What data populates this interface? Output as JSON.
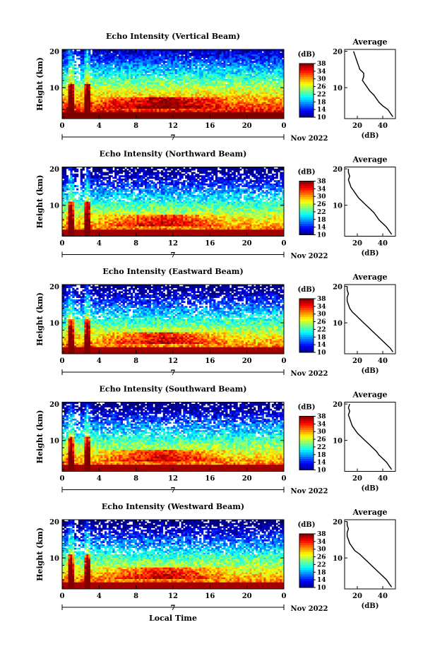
{
  "figure": {
    "xlabel": "Local Time",
    "month_label": "Nov 2022",
    "day_marker": "7"
  },
  "chart_data": [
    {
      "type": "heatmap",
      "title": "Echo Intensity (Vertical Beam)",
      "ylabel": "Height (km)",
      "x_ticks": [
        "0",
        "4",
        "8",
        "12",
        "16",
        "20",
        "0"
      ],
      "xlim": [
        0,
        24
      ],
      "y_ticks": [
        "10",
        "20"
      ],
      "ylim": [
        1.5,
        20.5
      ],
      "colorbar": {
        "unit": "(dB)",
        "ticks": [
          "10",
          "14",
          "18",
          "22",
          "26",
          "30",
          "34",
          "38"
        ],
        "range": [
          10,
          38
        ]
      },
      "profile": {
        "title": "Average",
        "xlabel": "(dB)",
        "x_ticks": [
          "20",
          "40"
        ],
        "xlim": [
          10,
          50
        ],
        "y_ticks": [
          "10",
          "20"
        ],
        "heights": [
          2,
          3,
          4,
          5,
          6,
          7,
          8,
          9,
          10,
          11,
          12,
          13,
          14,
          15,
          16,
          17,
          18,
          19,
          20
        ],
        "values": [
          48,
          46,
          44,
          40,
          37,
          35,
          33,
          30,
          28,
          26,
          24,
          25,
          25,
          22,
          21,
          20,
          19,
          18,
          17
        ]
      }
    },
    {
      "type": "heatmap",
      "title": "Echo Intensity (Northward Beam)",
      "ylabel": "Height (km)",
      "x_ticks": [
        "0",
        "4",
        "8",
        "12",
        "16",
        "20",
        "0"
      ],
      "xlim": [
        0,
        24
      ],
      "y_ticks": [
        "10",
        "20"
      ],
      "ylim": [
        1.5,
        20.5
      ],
      "colorbar": {
        "unit": "(dB)",
        "ticks": [
          "10",
          "14",
          "18",
          "22",
          "26",
          "30",
          "34",
          "38"
        ],
        "range": [
          10,
          38
        ]
      },
      "profile": {
        "title": "Average",
        "xlabel": "(dB)",
        "x_ticks": [
          "20",
          "40"
        ],
        "xlim": [
          10,
          50
        ],
        "y_ticks": [
          "10",
          "20"
        ],
        "heights": [
          2,
          3,
          4,
          5,
          6,
          7,
          8,
          9,
          10,
          11,
          12,
          13,
          14,
          15,
          16,
          17,
          18,
          19,
          20
        ],
        "values": [
          47,
          45,
          43,
          40,
          37,
          35,
          33,
          30,
          27,
          24,
          21,
          19,
          17,
          15,
          14,
          13,
          14,
          13,
          13
        ]
      }
    },
    {
      "type": "heatmap",
      "title": "Echo Intensity (Eastward Beam)",
      "ylabel": "Height (km)",
      "x_ticks": [
        "0",
        "4",
        "8",
        "12",
        "16",
        "20",
        "0"
      ],
      "xlim": [
        0,
        24
      ],
      "y_ticks": [
        "10",
        "20"
      ],
      "ylim": [
        1.5,
        20.5
      ],
      "colorbar": {
        "unit": "(dB)",
        "ticks": [
          "10",
          "14",
          "18",
          "22",
          "26",
          "30",
          "34",
          "38"
        ],
        "range": [
          10,
          38
        ]
      },
      "profile": {
        "title": "Average",
        "xlabel": "(dB)",
        "x_ticks": [
          "20",
          "40"
        ],
        "xlim": [
          10,
          50
        ],
        "y_ticks": [
          "10",
          "20"
        ],
        "heights": [
          2,
          3,
          4,
          5,
          6,
          7,
          8,
          9,
          10,
          11,
          12,
          13,
          14,
          15,
          16,
          17,
          18,
          19,
          20
        ],
        "values": [
          48,
          46,
          43,
          40,
          37,
          34,
          31,
          28,
          25,
          22,
          19,
          16,
          14,
          13,
          12,
          12,
          13,
          12,
          12
        ]
      }
    },
    {
      "type": "heatmap",
      "title": "Echo Intensity (Southward Beam)",
      "ylabel": "Height (km)",
      "x_ticks": [
        "0",
        "4",
        "8",
        "12",
        "16",
        "20",
        "0"
      ],
      "xlim": [
        0,
        24
      ],
      "y_ticks": [
        "10",
        "20"
      ],
      "ylim": [
        1.5,
        20.5
      ],
      "colorbar": {
        "unit": "(dB)",
        "ticks": [
          "10",
          "14",
          "18",
          "22",
          "26",
          "30",
          "34",
          "38"
        ],
        "range": [
          10,
          38
        ]
      },
      "profile": {
        "title": "Average",
        "xlabel": "(dB)",
        "x_ticks": [
          "20",
          "40"
        ],
        "xlim": [
          10,
          50
        ],
        "y_ticks": [
          "10",
          "20"
        ],
        "heights": [
          2,
          3,
          4,
          5,
          6,
          7,
          8,
          9,
          10,
          11,
          12,
          13,
          14,
          15,
          16,
          17,
          18,
          19,
          20
        ],
        "values": [
          47,
          45,
          43,
          40,
          37,
          35,
          32,
          29,
          26,
          23,
          20,
          18,
          16,
          15,
          14,
          13,
          14,
          13,
          14
        ]
      }
    },
    {
      "type": "heatmap",
      "title": "Echo Intensity (Westward Beam)",
      "ylabel": "Height (km)",
      "x_ticks": [
        "0",
        "4",
        "8",
        "12",
        "16",
        "20",
        "0"
      ],
      "xlim": [
        0,
        24
      ],
      "y_ticks": [
        "10",
        "20"
      ],
      "ylim": [
        1.5,
        20.5
      ],
      "colorbar": {
        "unit": "(dB)",
        "ticks": [
          "10",
          "14",
          "18",
          "22",
          "26",
          "30",
          "34",
          "38"
        ],
        "range": [
          10,
          38
        ]
      },
      "profile": {
        "title": "Average",
        "xlabel": "(dB)",
        "x_ticks": [
          "20",
          "40"
        ],
        "xlim": [
          10,
          50
        ],
        "y_ticks": [
          "10",
          "20"
        ],
        "heights": [
          2,
          3,
          4,
          5,
          6,
          7,
          8,
          9,
          10,
          11,
          12,
          13,
          14,
          15,
          16,
          17,
          18,
          19,
          20
        ],
        "values": [
          47,
          45,
          43,
          40,
          37,
          34,
          31,
          28,
          25,
          22,
          18,
          16,
          14,
          13,
          12,
          12,
          13,
          12,
          12
        ]
      }
    }
  ]
}
